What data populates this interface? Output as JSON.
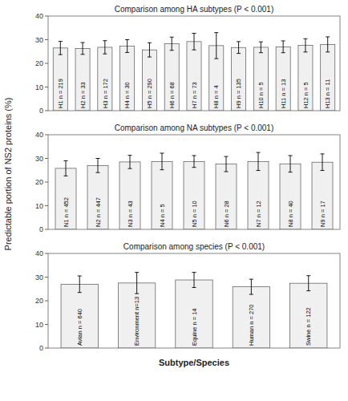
{
  "chart_data": [
    {
      "type": "bar",
      "title": "Comparison among HA subtypes (P < 0.001)",
      "categories": [
        "H1 n = 219",
        "H2 n = 33",
        "H3 n = 172",
        "H4 n = 30",
        "H5 n = 290",
        "H6 n = 68",
        "H7 n = 73",
        "H8 n = 4",
        "H9 n = 135",
        "H10 n = 5",
        "H11 n = 13",
        "H12 n = 5",
        "H13 n = 11"
      ],
      "values": [
        26.5,
        26.3,
        26.8,
        27.3,
        25.7,
        28.3,
        29.2,
        27.5,
        26.7,
        26.8,
        27.0,
        27.6,
        28.0
      ],
      "errors": [
        2.8,
        2.5,
        2.8,
        2.7,
        3.0,
        2.8,
        3.5,
        5.5,
        2.5,
        2.3,
        2.5,
        2.8,
        3.2
      ],
      "color": "#f0f0f0",
      "ylim": [
        0,
        40
      ],
      "yticks": [
        0,
        10,
        20,
        30,
        40
      ],
      "grid": false
    },
    {
      "type": "bar",
      "title": "Comparison among NA subtypes (P < 0.001)",
      "ylabel": "Predictable portion of NS2 proteins (%)",
      "categories": [
        "N1 n = 452",
        "N2 n = 447",
        "N3 n = 43",
        "N4 n = 5",
        "N5 n = 10",
        "N6 n = 28",
        "N7 n = 12",
        "N8 n = 40",
        "N9 n = 17"
      ],
      "values": [
        25.8,
        27.0,
        28.5,
        28.7,
        28.7,
        27.6,
        28.7,
        27.7,
        28.4
      ],
      "errors": [
        3.2,
        3.0,
        2.8,
        3.5,
        2.5,
        3.2,
        3.8,
        3.5,
        3.5
      ],
      "color": "#f0f0f0",
      "ylim": [
        0,
        40
      ],
      "yticks": [
        0,
        10,
        20,
        30,
        40
      ],
      "grid": false
    },
    {
      "type": "bar",
      "title": "Comparison among species (P < 0.001)",
      "xlabel": "Subtype/Species",
      "categories": [
        "Avian n = 640",
        "Environment n=13",
        "Equine n = 14",
        "Human n = 270",
        "Swine n = 122"
      ],
      "values": [
        27.0,
        27.5,
        28.8,
        25.9,
        27.4
      ],
      "errors": [
        3.5,
        4.5,
        3.2,
        3.2,
        3.2
      ],
      "color": "#f0f0f0",
      "ylim": [
        0,
        40
      ],
      "yticks": [
        0,
        10,
        20,
        30,
        40
      ],
      "grid": false
    }
  ]
}
